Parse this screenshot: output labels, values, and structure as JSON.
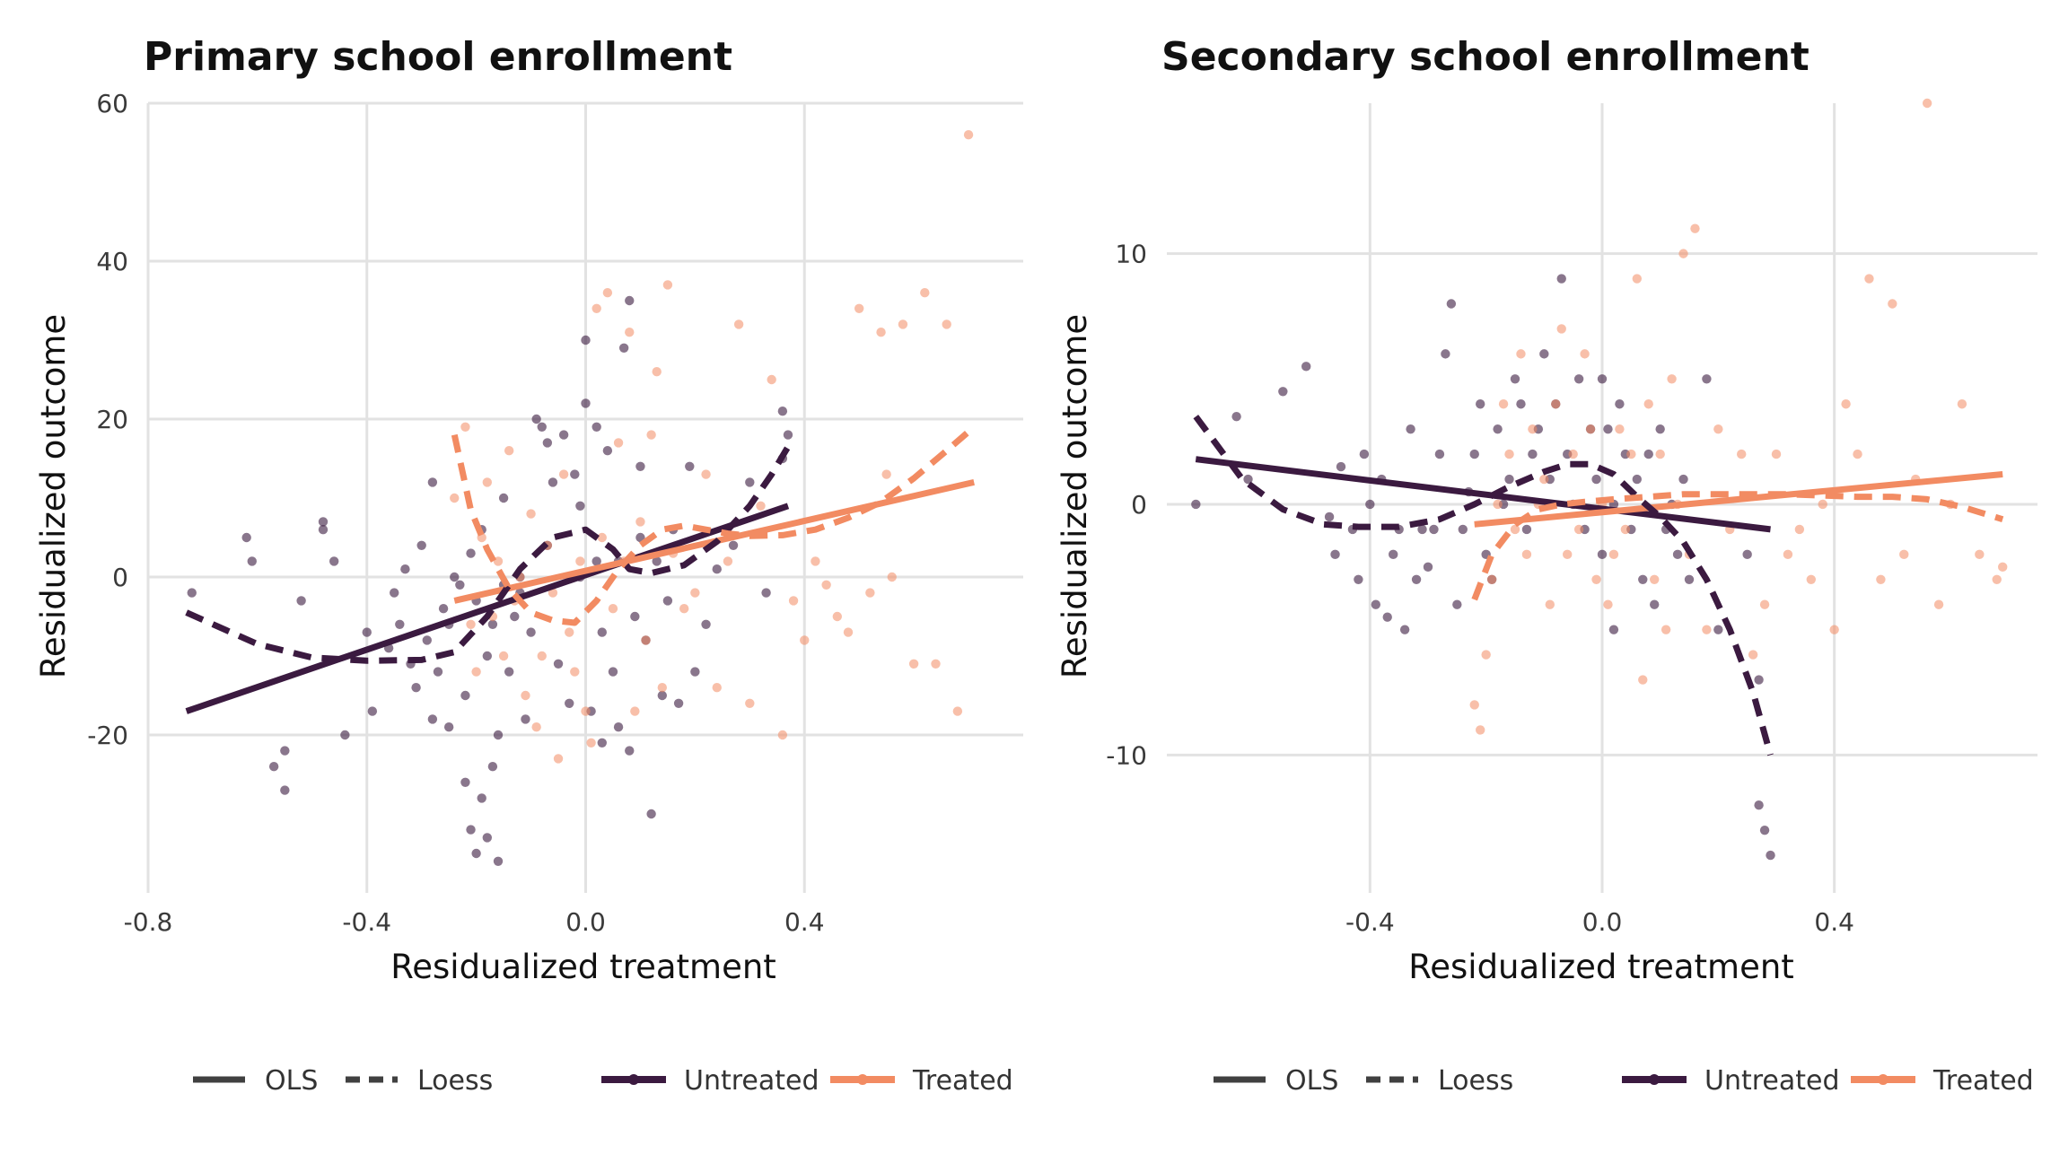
{
  "chart_data": [
    {
      "type": "scatter",
      "title": "Primary school enrollment",
      "xlabel": "Residualized treatment",
      "ylabel": "Residualized outcome",
      "xlim": [
        -0.8,
        0.8
      ],
      "ylim": [
        -40,
        60
      ],
      "xticks": [
        -0.8,
        -0.4,
        0.0,
        0.4
      ],
      "xtick_labels": [
        "-0.8",
        "-0.4",
        "0.0",
        "0.4"
      ],
      "yticks": [
        -20,
        0,
        20,
        40,
        60
      ],
      "ytick_labels": [
        "-20",
        "0",
        "20",
        "40",
        "60"
      ],
      "grid": true,
      "legend_position": "bottom",
      "series": [
        {
          "name": "Untreated",
          "color": "#3b1a40",
          "kind": "points",
          "x": [
            -0.72,
            -0.62,
            -0.61,
            -0.57,
            -0.55,
            -0.55,
            -0.52,
            -0.48,
            -0.48,
            -0.46,
            -0.44,
            -0.4,
            -0.39,
            -0.36,
            -0.35,
            -0.34,
            -0.33,
            -0.32,
            -0.31,
            -0.3,
            -0.29,
            -0.28,
            -0.28,
            -0.27,
            -0.26,
            -0.25,
            -0.25,
            -0.24,
            -0.23,
            -0.22,
            -0.22,
            -0.21,
            -0.21,
            -0.2,
            -0.2,
            -0.19,
            -0.19,
            -0.18,
            -0.18,
            -0.17,
            -0.17,
            -0.16,
            -0.16,
            -0.15,
            -0.15,
            -0.14,
            -0.13,
            -0.12,
            -0.12,
            -0.11,
            -0.1,
            -0.09,
            -0.08,
            -0.07,
            -0.07,
            -0.06,
            -0.05,
            -0.04,
            -0.03,
            -0.02,
            -0.01,
            -0.01,
            0.0,
            0.0,
            0.01,
            0.02,
            0.02,
            0.03,
            0.03,
            0.04,
            0.05,
            0.06,
            0.06,
            0.07,
            0.08,
            0.08,
            0.09,
            0.1,
            0.1,
            0.11,
            0.12,
            0.13,
            0.14,
            0.15,
            0.16,
            0.17,
            0.19,
            0.2,
            0.22,
            0.24,
            0.27,
            0.3,
            0.33,
            0.36,
            0.36,
            0.37
          ],
          "y": [
            -2,
            5,
            2,
            -24,
            -27,
            -22,
            -3,
            6,
            7,
            2,
            -20,
            -7,
            -17,
            -9,
            -2,
            -6,
            1,
            -11,
            -14,
            4,
            -8,
            -18,
            12,
            -12,
            -4,
            -19,
            -6,
            0,
            -1,
            -15,
            -26,
            3,
            -32,
            -35,
            -3,
            -28,
            6,
            -33,
            -10,
            -24,
            -6,
            -36,
            -20,
            -1,
            10,
            -12,
            -5,
            0,
            -2,
            -18,
            -7,
            20,
            19,
            17,
            4,
            12,
            -11,
            18,
            -16,
            13,
            0,
            9,
            22,
            30,
            -17,
            2,
            19,
            -7,
            -21,
            16,
            -12,
            -19,
            2,
            29,
            35,
            -22,
            -5,
            14,
            5,
            -8,
            -30,
            2,
            -15,
            -3,
            6,
            -16,
            14,
            -12,
            -6,
            1,
            4,
            12,
            -2,
            21,
            15,
            18
          ]
        },
        {
          "name": "Treated",
          "color": "#f28b62",
          "kind": "points",
          "x": [
            -0.24,
            -0.22,
            -0.21,
            -0.2,
            -0.19,
            -0.18,
            -0.17,
            -0.16,
            -0.15,
            -0.14,
            -0.13,
            -0.12,
            -0.11,
            -0.1,
            -0.09,
            -0.08,
            -0.07,
            -0.06,
            -0.05,
            -0.04,
            -0.03,
            -0.02,
            -0.01,
            0.0,
            0.01,
            0.02,
            0.03,
            0.04,
            0.05,
            0.06,
            0.07,
            0.08,
            0.09,
            0.1,
            0.11,
            0.12,
            0.13,
            0.14,
            0.15,
            0.16,
            0.18,
            0.2,
            0.22,
            0.24,
            0.26,
            0.28,
            0.3,
            0.32,
            0.34,
            0.36,
            0.38,
            0.4,
            0.42,
            0.44,
            0.46,
            0.48,
            0.5,
            0.52,
            0.54,
            0.55,
            0.56,
            0.58,
            0.6,
            0.62,
            0.64,
            0.66,
            0.68,
            0.7
          ],
          "y": [
            10,
            19,
            -6,
            -12,
            5,
            12,
            -5,
            2,
            -10,
            16,
            -3,
            0,
            -15,
            8,
            -19,
            -10,
            4,
            -2,
            -23,
            13,
            -7,
            -12,
            2,
            -17,
            -21,
            34,
            5,
            36,
            -4,
            17,
            2,
            31,
            -17,
            7,
            -8,
            18,
            26,
            -14,
            37,
            3,
            -4,
            -2,
            13,
            -14,
            2,
            32,
            -16,
            9,
            25,
            -20,
            -3,
            -8,
            2,
            -1,
            -5,
            -7,
            34,
            -2,
            31,
            13,
            0,
            32,
            -11,
            36,
            -11,
            32,
            -17,
            56
          ]
        },
        {
          "name": "Untreated",
          "color": "#3b1a40",
          "kind": "ols",
          "x": [
            -0.73,
            0.37
          ],
          "y": [
            -17.0,
            9.0
          ]
        },
        {
          "name": "Treated",
          "color": "#f28b62",
          "kind": "ols",
          "x": [
            -0.24,
            0.71
          ],
          "y": [
            -3.0,
            12.0
          ]
        },
        {
          "name": "Untreated",
          "color": "#3b1a40",
          "kind": "loess",
          "x": [
            -0.73,
            -0.6,
            -0.5,
            -0.4,
            -0.3,
            -0.24,
            -0.18,
            -0.12,
            -0.06,
            0.0,
            0.05,
            0.08,
            0.12,
            0.18,
            0.24,
            0.3,
            0.34,
            0.37
          ],
          "y": [
            -4.5,
            -8.5,
            -10.2,
            -10.6,
            -10.5,
            -9.5,
            -5.0,
            1.0,
            5.0,
            6.0,
            3.5,
            1.0,
            0.5,
            1.5,
            4.5,
            9.0,
            13.0,
            16.5
          ]
        },
        {
          "name": "Treated",
          "color": "#f28b62",
          "kind": "loess",
          "x": [
            -0.24,
            -0.21,
            -0.18,
            -0.14,
            -0.1,
            -0.06,
            -0.02,
            0.02,
            0.06,
            0.1,
            0.14,
            0.18,
            0.22,
            0.26,
            0.3,
            0.36,
            0.42,
            0.48,
            0.54,
            0.6,
            0.66,
            0.71
          ],
          "y": [
            18.0,
            8.5,
            3.5,
            -1.5,
            -4.5,
            -5.5,
            -5.8,
            -3.0,
            1.0,
            4.0,
            6.0,
            6.5,
            6.0,
            5.5,
            5.2,
            5.3,
            6.0,
            7.5,
            9.5,
            12.5,
            16.0,
            19.0
          ]
        }
      ],
      "legend": {
        "linetype": [
          "OLS",
          "Loess"
        ],
        "color": [
          "Untreated",
          "Treated"
        ]
      }
    },
    {
      "type": "scatter",
      "title": "Secondary school enrollment",
      "xlabel": "Residualized treatment",
      "ylabel": "Residualized outcome",
      "xlim": [
        -0.75,
        0.75
      ],
      "ylim": [
        -15.5,
        16
      ],
      "xticks": [
        -0.4,
        0.0,
        0.4
      ],
      "xtick_labels": [
        "-0.4",
        "0.0",
        "0.4"
      ],
      "yticks": [
        -10,
        0,
        10
      ],
      "ytick_labels": [
        "-10",
        "0",
        "10"
      ],
      "grid": true,
      "legend_position": "bottom",
      "series": [
        {
          "name": "Untreated",
          "color": "#3b1a40",
          "kind": "points",
          "x": [
            -0.7,
            -0.63,
            -0.61,
            -0.55,
            -0.51,
            -0.47,
            -0.46,
            -0.45,
            -0.43,
            -0.42,
            -0.41,
            -0.4,
            -0.39,
            -0.38,
            -0.37,
            -0.36,
            -0.35,
            -0.34,
            -0.33,
            -0.32,
            -0.31,
            -0.3,
            -0.29,
            -0.28,
            -0.27,
            -0.26,
            -0.25,
            -0.24,
            -0.23,
            -0.22,
            -0.21,
            -0.2,
            -0.19,
            -0.18,
            -0.17,
            -0.16,
            -0.15,
            -0.14,
            -0.13,
            -0.12,
            -0.11,
            -0.1,
            -0.09,
            -0.08,
            -0.07,
            -0.06,
            -0.05,
            -0.04,
            -0.03,
            -0.02,
            -0.01,
            0.0,
            0.0,
            0.01,
            0.02,
            0.02,
            0.03,
            0.04,
            0.05,
            0.06,
            0.07,
            0.08,
            0.09,
            0.1,
            0.11,
            0.12,
            0.13,
            0.14,
            0.15,
            0.18,
            0.2,
            0.25,
            0.27,
            0.27,
            0.28,
            0.29
          ],
          "y": [
            0,
            3.5,
            1,
            4.5,
            5.5,
            -0.5,
            -2,
            1.5,
            -1,
            -3,
            2,
            0,
            -4,
            1,
            -4.5,
            -2,
            -1,
            -5,
            3,
            -3,
            -1,
            -2.5,
            -1,
            2,
            6,
            8,
            -4,
            -1,
            0.5,
            2,
            4,
            -2,
            -3,
            3,
            0,
            1,
            5,
            4,
            -1,
            2,
            3,
            6,
            1,
            4,
            9,
            2,
            0,
            5,
            -1,
            3,
            1,
            5,
            -2,
            3,
            -5,
            0,
            4,
            2,
            -1,
            1,
            -3,
            2,
            -4,
            3,
            -1,
            0,
            -2,
            1,
            -3,
            5,
            -5,
            -2,
            -12,
            -7,
            -13,
            -14
          ]
        },
        {
          "name": "Treated",
          "color": "#f28b62",
          "kind": "points",
          "x": [
            -0.22,
            -0.21,
            -0.2,
            -0.19,
            -0.18,
            -0.17,
            -0.16,
            -0.15,
            -0.14,
            -0.13,
            -0.12,
            -0.11,
            -0.1,
            -0.09,
            -0.08,
            -0.07,
            -0.06,
            -0.05,
            -0.04,
            -0.03,
            -0.02,
            -0.01,
            0.0,
            0.01,
            0.02,
            0.03,
            0.04,
            0.05,
            0.06,
            0.07,
            0.08,
            0.09,
            0.1,
            0.11,
            0.12,
            0.13,
            0.14,
            0.15,
            0.16,
            0.18,
            0.2,
            0.22,
            0.24,
            0.26,
            0.28,
            0.3,
            0.32,
            0.34,
            0.36,
            0.38,
            0.4,
            0.42,
            0.44,
            0.46,
            0.48,
            0.5,
            0.52,
            0.54,
            0.56,
            0.58,
            0.6,
            0.62,
            0.65,
            0.68,
            0.69
          ],
          "y": [
            -8,
            -9,
            -6,
            -3,
            0,
            4,
            2,
            -1,
            6,
            -2,
            3,
            0,
            1,
            -4,
            4,
            7,
            -2,
            2,
            -1,
            6,
            3,
            -3,
            0,
            -4,
            -2,
            3,
            -1,
            2,
            9,
            -7,
            4,
            -3,
            2,
            -5,
            5,
            0,
            10,
            -2,
            11,
            -5,
            3,
            -1,
            2,
            -6,
            -4,
            2,
            -2,
            -1,
            -3,
            0,
            -5,
            4,
            2,
            9,
            -3,
            8,
            -2,
            1,
            16,
            -4,
            0,
            4,
            -2,
            -3,
            -2.5
          ]
        },
        {
          "name": "Untreated",
          "color": "#3b1a40",
          "kind": "ols",
          "x": [
            -0.7,
            0.29
          ],
          "y": [
            1.8,
            -1.0
          ]
        },
        {
          "name": "Treated",
          "color": "#f28b62",
          "kind": "ols",
          "x": [
            -0.22,
            0.69
          ],
          "y": [
            -0.8,
            1.2
          ]
        },
        {
          "name": "Untreated",
          "color": "#3b1a40",
          "kind": "loess",
          "x": [
            -0.7,
            -0.62,
            -0.55,
            -0.48,
            -0.42,
            -0.35,
            -0.28,
            -0.22,
            -0.16,
            -0.1,
            -0.06,
            -0.02,
            0.02,
            0.06,
            0.1,
            0.14,
            0.18,
            0.22,
            0.26,
            0.29
          ],
          "y": [
            3.5,
            1.0,
            -0.2,
            -0.8,
            -0.9,
            -0.9,
            -0.6,
            0.0,
            0.7,
            1.3,
            1.6,
            1.6,
            1.2,
            0.3,
            -0.5,
            -1.5,
            -3.0,
            -5.0,
            -7.5,
            -10.0
          ]
        },
        {
          "name": "Treated",
          "color": "#f28b62",
          "kind": "loess",
          "x": [
            -0.22,
            -0.19,
            -0.15,
            -0.11,
            -0.07,
            -0.03,
            0.02,
            0.08,
            0.14,
            0.2,
            0.26,
            0.32,
            0.38,
            0.44,
            0.5,
            0.56,
            0.62,
            0.69
          ],
          "y": [
            -3.8,
            -2.0,
            -0.8,
            -0.2,
            0.0,
            0.1,
            0.2,
            0.3,
            0.4,
            0.4,
            0.4,
            0.4,
            0.35,
            0.3,
            0.3,
            0.2,
            -0.1,
            -0.6
          ]
        }
      ],
      "legend": {
        "linetype": [
          "OLS",
          "Loess"
        ],
        "color": [
          "Untreated",
          "Treated"
        ]
      }
    }
  ]
}
